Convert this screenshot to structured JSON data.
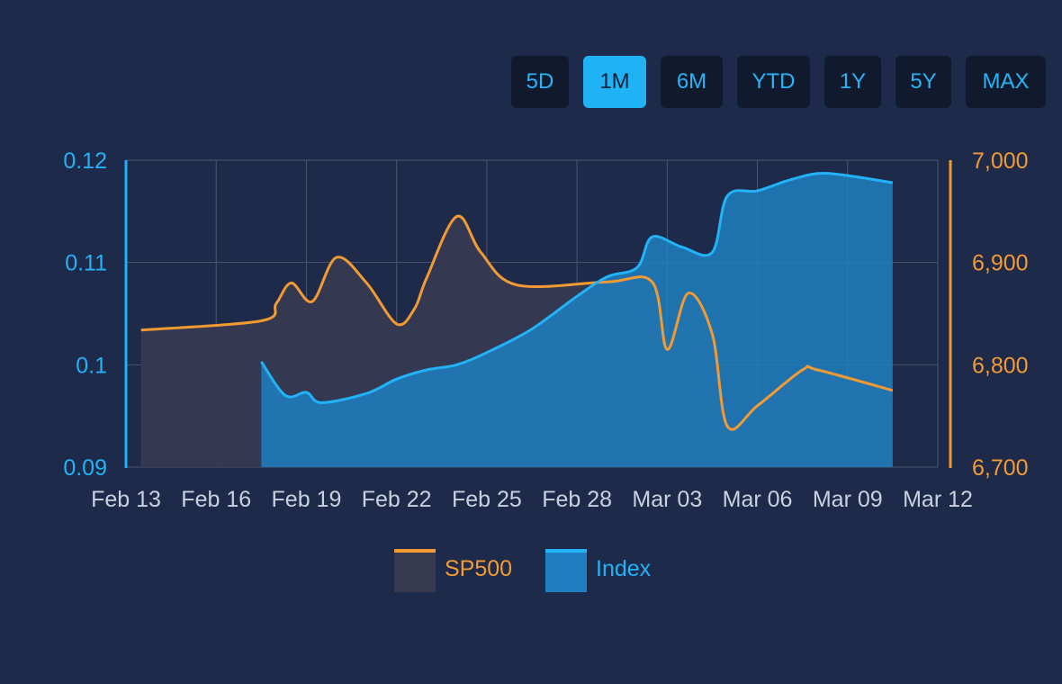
{
  "range_buttons": {
    "items": [
      "5D",
      "1M",
      "6M",
      "YTD",
      "1Y",
      "5Y",
      "MAX"
    ],
    "active": "1M"
  },
  "colors": {
    "background": "#1e2a4a",
    "sp500_line": "#f39a33",
    "sp500_fill": "#363950",
    "index_line": "#21b2f8",
    "index_fill": "#1f7fc0",
    "grid": "#4a5670",
    "x_tick": "#c9d1e0"
  },
  "legend": {
    "sp500_label": "SP500",
    "index_label": "Index"
  },
  "chart_data": {
    "type": "area",
    "x_ticks": [
      "Feb 13",
      "Feb 16",
      "Feb 19",
      "Feb 22",
      "Feb 25",
      "Feb 28",
      "Mar 03",
      "Mar 06",
      "Mar 09",
      "Mar 12"
    ],
    "y_left": {
      "min": 0.09,
      "max": 0.12,
      "ticks": [
        0.12,
        0.11,
        0.1,
        0.09
      ],
      "tick_labels": [
        "0.12",
        "0.11",
        "0.1",
        "0.09"
      ]
    },
    "y_right": {
      "min": 6700,
      "max": 7000,
      "ticks": [
        7000,
        6900,
        6800,
        6700
      ],
      "tick_labels": [
        "7,000",
        "6,900",
        "6,800",
        "6,700"
      ]
    },
    "grid": true,
    "legend_position": "bottom",
    "series": [
      {
        "name": "SP500",
        "axis": "right",
        "points": [
          [
            0.5,
            6834
          ],
          [
            4.5,
            6843
          ],
          [
            5.0,
            6860
          ],
          [
            5.5,
            6880
          ],
          [
            6.2,
            6862
          ],
          [
            7.0,
            6905
          ],
          [
            8.0,
            6880
          ],
          [
            9.0,
            6840
          ],
          [
            9.6,
            6855
          ],
          [
            10.0,
            6885
          ],
          [
            11.0,
            6945
          ],
          [
            11.8,
            6910
          ],
          [
            13.0,
            6878
          ],
          [
            16.0,
            6881
          ],
          [
            17.5,
            6881
          ],
          [
            18.0,
            6815
          ],
          [
            18.7,
            6870
          ],
          [
            19.5,
            6830
          ],
          [
            20.0,
            6740
          ],
          [
            21.0,
            6760
          ],
          [
            22.5,
            6795
          ],
          [
            23.0,
            6795
          ],
          [
            25.5,
            6775
          ]
        ]
      },
      {
        "name": "Index",
        "axis": "left",
        "points": [
          [
            4.5,
            0.1003
          ],
          [
            5.3,
            0.097
          ],
          [
            6.0,
            0.0973
          ],
          [
            6.5,
            0.0963
          ],
          [
            8.0,
            0.0972
          ],
          [
            9.0,
            0.0986
          ],
          [
            10.0,
            0.0995
          ],
          [
            11.0,
            0.1
          ],
          [
            12.0,
            0.1012
          ],
          [
            13.5,
            0.1035
          ],
          [
            15.0,
            0.1067
          ],
          [
            16.0,
            0.1086
          ],
          [
            17.0,
            0.1095
          ],
          [
            17.5,
            0.1125
          ],
          [
            18.5,
            0.1115
          ],
          [
            19.5,
            0.111
          ],
          [
            20.0,
            0.1165
          ],
          [
            21.0,
            0.117
          ],
          [
            22.0,
            0.118
          ],
          [
            23.0,
            0.1187
          ],
          [
            24.0,
            0.1185
          ],
          [
            25.5,
            0.1178
          ]
        ]
      }
    ]
  }
}
